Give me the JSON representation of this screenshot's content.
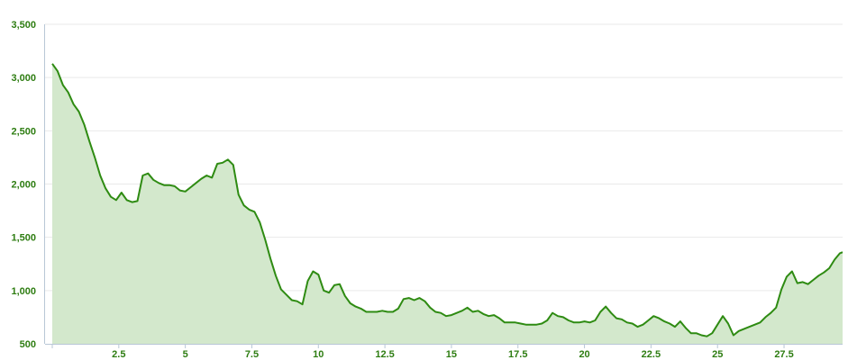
{
  "chart_data": {
    "type": "area",
    "title": "",
    "xlabel": "",
    "ylabel": "",
    "xlim": [
      0,
      29.7
    ],
    "ylim": [
      500,
      3500
    ],
    "grid": true,
    "legend": "none",
    "x_ticks": [
      2.5,
      5,
      7.5,
      10,
      12.5,
      15,
      17.5,
      20,
      22.5,
      25,
      27.5
    ],
    "x_tick_labels": [
      "2.5",
      "5",
      "7.5",
      "10",
      "12.5",
      "15",
      "17.5",
      "20",
      "22.5",
      "25",
      "27.5"
    ],
    "y_ticks": [
      500,
      1000,
      1500,
      2000,
      2500,
      3000,
      3500
    ],
    "y_tick_labels": [
      "500",
      "1,000",
      "1,500",
      "2,000",
      "2,500",
      "3,000",
      "3,500"
    ],
    "colors": {
      "line": "#2e8b12",
      "fill": "#d3e8cc",
      "tick_text": "#2e7d12"
    },
    "series": [
      {
        "x": [
          0.0,
          0.2,
          0.4,
          0.6,
          0.8,
          1.0,
          1.2,
          1.4,
          1.6,
          1.8,
          2.0,
          2.2,
          2.4,
          2.6,
          2.8,
          3.0,
          3.2,
          3.4,
          3.6,
          3.8,
          4.0,
          4.2,
          4.4,
          4.6,
          4.8,
          5.0,
          5.2,
          5.4,
          5.6,
          5.8,
          6.0,
          6.2,
          6.4,
          6.6,
          6.8,
          7.0,
          7.2,
          7.4,
          7.6,
          7.8,
          8.0,
          8.2,
          8.4,
          8.6,
          8.8,
          9.0,
          9.2,
          9.4,
          9.6,
          9.8,
          10.0,
          10.2,
          10.4,
          10.6,
          10.8,
          11.0,
          11.2,
          11.4,
          11.6,
          11.8,
          12.0,
          12.2,
          12.4,
          12.6,
          12.8,
          13.0,
          13.2,
          13.4,
          13.6,
          13.8,
          14.0,
          14.2,
          14.4,
          14.6,
          14.8,
          15.0,
          15.2,
          15.4,
          15.6,
          15.8,
          16.0,
          16.2,
          16.4,
          16.6,
          16.8,
          17.0,
          17.2,
          17.4,
          17.6,
          17.8,
          18.0,
          18.2,
          18.4,
          18.6,
          18.8,
          19.0,
          19.2,
          19.4,
          19.6,
          19.8,
          20.0,
          20.2,
          20.4,
          20.6,
          20.8,
          21.0,
          21.2,
          21.4,
          21.6,
          21.8,
          22.0,
          22.2,
          22.4,
          22.6,
          22.8,
          23.0,
          23.2,
          23.4,
          23.6,
          23.8,
          24.0,
          24.2,
          24.4,
          24.6,
          24.8,
          25.0,
          25.2,
          25.4,
          25.6,
          25.8,
          26.0,
          26.2,
          26.4,
          26.6,
          26.8,
          27.0,
          27.2,
          27.4,
          27.6,
          27.8,
          28.0,
          28.2,
          28.4,
          28.6,
          28.8,
          29.0,
          29.2,
          29.4,
          29.6,
          29.7
        ],
        "values": [
          3130,
          3060,
          2930,
          2860,
          2750,
          2680,
          2560,
          2400,
          2250,
          2080,
          1960,
          1880,
          1850,
          1920,
          1850,
          1830,
          1840,
          2080,
          2100,
          2040,
          2010,
          1990,
          1990,
          1980,
          1940,
          1930,
          1970,
          2010,
          2050,
          2080,
          2060,
          2190,
          2200,
          2230,
          2180,
          1900,
          1800,
          1760,
          1740,
          1640,
          1480,
          1300,
          1140,
          1010,
          960,
          910,
          900,
          870,
          1090,
          1180,
          1150,
          1000,
          980,
          1050,
          1060,
          950,
          880,
          850,
          830,
          800,
          800,
          800,
          810,
          800,
          800,
          830,
          920,
          930,
          910,
          930,
          900,
          840,
          800,
          790,
          760,
          770,
          790,
          810,
          840,
          800,
          810,
          780,
          760,
          770,
          740,
          700,
          700,
          700,
          690,
          680,
          680,
          680,
          690,
          720,
          790,
          760,
          750,
          720,
          700,
          700,
          710,
          700,
          720,
          800,
          850,
          790,
          740,
          730,
          700,
          690,
          660,
          680,
          720,
          760,
          740,
          710,
          690,
          660,
          710,
          650,
          600,
          600,
          580,
          570,
          600,
          680,
          760,
          690,
          580,
          620,
          640,
          660,
          680,
          700,
          750,
          790,
          840,
          1010,
          1130,
          1180,
          1070,
          1080,
          1060,
          1100,
          1140,
          1170,
          1210,
          1290,
          1350,
          1360
        ]
      }
    ]
  }
}
